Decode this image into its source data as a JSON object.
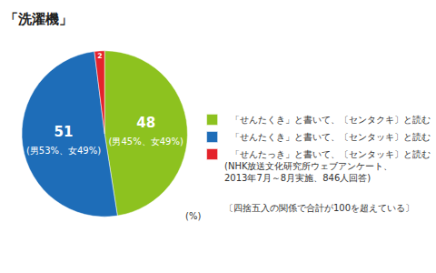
{
  "chart_data": {
    "type": "pie",
    "title": "「洗濯機」",
    "categories": [
      "「せんたくき」と書いて、〔センタクキ〕と読む",
      "「せんたくき」と書いて、〔センタッキ〕と読む",
      "「せんたっき」と書いて、〔センタッキ〕と読む"
    ],
    "values": [
      48,
      51,
      2
    ],
    "colors": [
      "#8dc21f",
      "#1e6db8",
      "#e4232b"
    ],
    "data_labels": true,
    "breakdown": [
      "(男45%、女49%)",
      "(男53%、女49%)",
      null
    ],
    "unit_label": "(%)",
    "source": [
      "(NHK放送文化研究所ウェブアンケート、",
      "2013年7月～8月実施、846人回答)"
    ],
    "note": "〔四捨五入の関係で合計が100を超えている〕",
    "legend": "right"
  }
}
